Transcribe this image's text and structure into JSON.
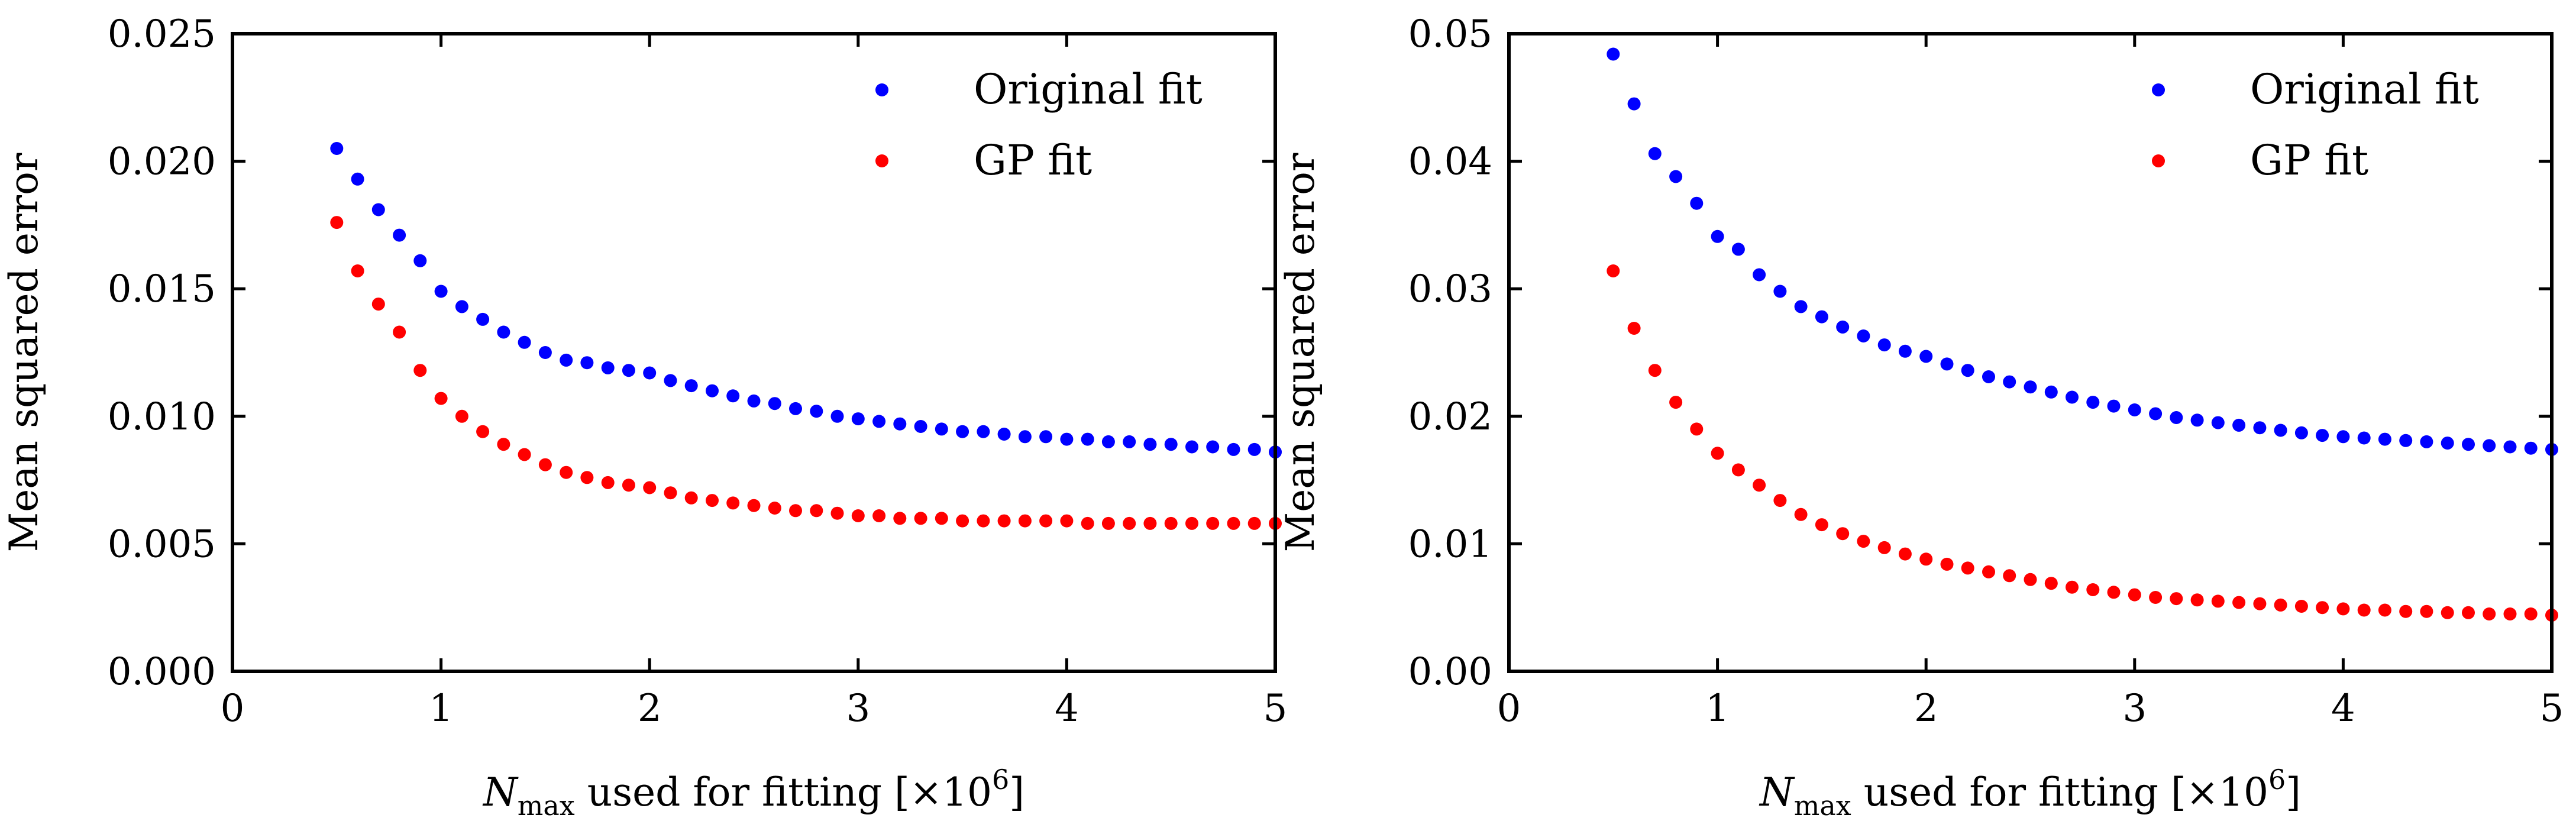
{
  "chart_data": [
    {
      "type": "scatter",
      "xlabel_main": "N",
      "xlabel_sub": "max",
      "xlabel_rest": " used for fitting [×10",
      "xlabel_sup": "6",
      "xlabel_close": "]",
      "ylabel": "Mean squared error",
      "xlim": [
        0,
        5
      ],
      "ylim": [
        0,
        0.025
      ],
      "xticks": [
        0,
        1,
        2,
        3,
        4,
        5
      ],
      "xtick_labels": [
        "0",
        "1",
        "2",
        "3",
        "4",
        "5"
      ],
      "yticks": [
        0,
        0.005,
        0.01,
        0.015,
        0.02,
        0.025
      ],
      "ytick_labels": [
        "0.000",
        "0.005",
        "0.010",
        "0.015",
        "0.020",
        "0.025"
      ],
      "grid": false,
      "legend": "top-right",
      "x": [
        0.5,
        0.6,
        0.7,
        0.8,
        0.9,
        1.0,
        1.1,
        1.2,
        1.3,
        1.4,
        1.5,
        1.6,
        1.7,
        1.8,
        1.9,
        2.0,
        2.1,
        2.2,
        2.3,
        2.4,
        2.5,
        2.6,
        2.7,
        2.8,
        2.9,
        3.0,
        3.1,
        3.2,
        3.3,
        3.4,
        3.5,
        3.6,
        3.7,
        3.8,
        3.9,
        4.0,
        4.1,
        4.2,
        4.3,
        4.4,
        4.5,
        4.6,
        4.7,
        4.8,
        4.9,
        5.0
      ],
      "series": [
        {
          "name": "Original fit",
          "color": "#0000ff",
          "values": [
            0.0205,
            0.0193,
            0.0181,
            0.0171,
            0.0161,
            0.0149,
            0.0143,
            0.0138,
            0.0133,
            0.0129,
            0.0125,
            0.0122,
            0.0121,
            0.0119,
            0.0118,
            0.0117,
            0.0114,
            0.0112,
            0.011,
            0.0108,
            0.0106,
            0.0105,
            0.0103,
            0.0102,
            0.01,
            0.0099,
            0.0098,
            0.0097,
            0.0096,
            0.0095,
            0.0094,
            0.0094,
            0.0093,
            0.0092,
            0.0092,
            0.0091,
            0.0091,
            0.009,
            0.009,
            0.0089,
            0.0089,
            0.0088,
            0.0088,
            0.0087,
            0.0087,
            0.0086
          ]
        },
        {
          "name": "GP fit",
          "color": "#ff0000",
          "values": [
            0.0176,
            0.0157,
            0.0144,
            0.0133,
            0.0118,
            0.0107,
            0.01,
            0.0094,
            0.0089,
            0.0085,
            0.0081,
            0.0078,
            0.0076,
            0.0074,
            0.0073,
            0.0072,
            0.007,
            0.0068,
            0.0067,
            0.0066,
            0.0065,
            0.0064,
            0.0063,
            0.0063,
            0.0062,
            0.0061,
            0.0061,
            0.006,
            0.006,
            0.006,
            0.0059,
            0.0059,
            0.0059,
            0.0059,
            0.0059,
            0.0059,
            0.0058,
            0.0058,
            0.0058,
            0.0058,
            0.0058,
            0.0058,
            0.0058,
            0.0058,
            0.0058,
            0.0058
          ]
        }
      ]
    },
    {
      "type": "scatter",
      "xlabel_main": "N",
      "xlabel_sub": "max",
      "xlabel_rest": " used for fitting [×10",
      "xlabel_sup": "6",
      "xlabel_close": "]",
      "ylabel": "Mean squared error",
      "xlim": [
        0,
        5
      ],
      "ylim": [
        0,
        0.05
      ],
      "xticks": [
        0,
        1,
        2,
        3,
        4,
        5
      ],
      "xtick_labels": [
        "0",
        "1",
        "2",
        "3",
        "4",
        "5"
      ],
      "yticks": [
        0,
        0.01,
        0.02,
        0.03,
        0.04,
        0.05
      ],
      "ytick_labels": [
        "0.00",
        "0.01",
        "0.02",
        "0.03",
        "0.04",
        "0.05"
      ],
      "grid": false,
      "legend": "top-right",
      "x": [
        0.5,
        0.6,
        0.7,
        0.8,
        0.9,
        1.0,
        1.1,
        1.2,
        1.3,
        1.4,
        1.5,
        1.6,
        1.7,
        1.8,
        1.9,
        2.0,
        2.1,
        2.2,
        2.3,
        2.4,
        2.5,
        2.6,
        2.7,
        2.8,
        2.9,
        3.0,
        3.1,
        3.2,
        3.3,
        3.4,
        3.5,
        3.6,
        3.7,
        3.8,
        3.9,
        4.0,
        4.1,
        4.2,
        4.3,
        4.4,
        4.5,
        4.6,
        4.7,
        4.8,
        4.9,
        5.0
      ],
      "series": [
        {
          "name": "Original fit",
          "color": "#0000ff",
          "values": [
            0.0484,
            0.0445,
            0.0406,
            0.0388,
            0.0367,
            0.0341,
            0.0331,
            0.0311,
            0.0298,
            0.0286,
            0.0278,
            0.027,
            0.0263,
            0.0256,
            0.0251,
            0.0247,
            0.0241,
            0.0236,
            0.0231,
            0.0227,
            0.0223,
            0.0219,
            0.0215,
            0.0211,
            0.0208,
            0.0205,
            0.0202,
            0.0199,
            0.0197,
            0.0195,
            0.0193,
            0.0191,
            0.0189,
            0.0187,
            0.0185,
            0.0184,
            0.0183,
            0.0182,
            0.0181,
            0.018,
            0.0179,
            0.0178,
            0.0177,
            0.0176,
            0.0175,
            0.0174
          ]
        },
        {
          "name": "GP fit",
          "color": "#ff0000",
          "values": [
            0.0314,
            0.0269,
            0.0236,
            0.0211,
            0.019,
            0.0171,
            0.0158,
            0.0146,
            0.0134,
            0.0123,
            0.0115,
            0.0108,
            0.0102,
            0.0097,
            0.0092,
            0.0088,
            0.0084,
            0.0081,
            0.0078,
            0.0075,
            0.0072,
            0.0069,
            0.0066,
            0.0064,
            0.0062,
            0.006,
            0.0058,
            0.0057,
            0.0056,
            0.0055,
            0.0054,
            0.0053,
            0.0052,
            0.0051,
            0.005,
            0.0049,
            0.0048,
            0.0048,
            0.0047,
            0.0047,
            0.0046,
            0.0046,
            0.0045,
            0.0045,
            0.0045,
            0.0044
          ]
        }
      ]
    }
  ]
}
